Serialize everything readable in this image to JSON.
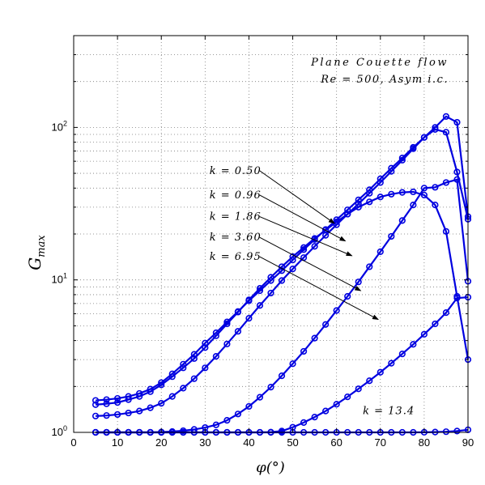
{
  "chart_data": {
    "type": "line",
    "xlabel": "φ(°)",
    "ylabel": "G",
    "ylabel_sub": "max",
    "xlim": [
      0,
      90
    ],
    "ylim": [
      1,
      400
    ],
    "yscale": "log",
    "grid": true,
    "x_ticks": [
      0,
      10,
      20,
      30,
      40,
      50,
      60,
      70,
      80,
      90
    ],
    "y_ticks": [
      {
        "value": 1,
        "base": "10",
        "exp": "0"
      },
      {
        "value": 10,
        "base": "10",
        "exp": "1"
      },
      {
        "value": 100,
        "base": "10",
        "exp": "2"
      }
    ],
    "annotation_title": [
      "Plane Couette flow",
      "Re = 500, Asym i.c."
    ],
    "series": [
      {
        "label": "k = 0.50",
        "x": [
          5,
          7.5,
          10,
          12.5,
          15,
          17.5,
          20,
          22.5,
          25,
          27.5,
          30,
          32.5,
          35,
          37.5,
          40,
          42.5,
          45,
          47.5,
          50,
          52.5,
          55,
          57.5,
          60,
          62.5,
          65,
          67.5,
          70,
          72.5,
          75,
          77.5,
          80,
          82.5,
          85,
          87.5,
          90
        ],
        "y": [
          1.52,
          1.54,
          1.57,
          1.64,
          1.72,
          1.85,
          2.05,
          2.32,
          2.65,
          3.05,
          3.6,
          4.3,
          5.15,
          6.15,
          7.4,
          8.8,
          10.4,
          12.2,
          14.2,
          16.3,
          18.7,
          21.2,
          24.0,
          27.0,
          30.0,
          32.5,
          35.0,
          36.5,
          37.5,
          37.8,
          36.0,
          31.0,
          20.8,
          7.8,
          3.0
        ],
        "arrow": {
          "label_x": 31,
          "label_y": 52,
          "tip_x": 59.5,
          "tip_y": 23.5
        }
      },
      {
        "label": "k = 0.96",
        "x": [
          5,
          7.5,
          10,
          12.5,
          15,
          17.5,
          20,
          22.5,
          25,
          27.5,
          30,
          32.5,
          35,
          37.5,
          40,
          42.5,
          45,
          47.5,
          50,
          52.5,
          55,
          57.5,
          60,
          62.5,
          65,
          67.5,
          70,
          72.5,
          75,
          77.5,
          80,
          82.5,
          85,
          87.5,
          90
        ],
        "y": [
          1.62,
          1.64,
          1.67,
          1.72,
          1.8,
          1.92,
          2.12,
          2.42,
          2.8,
          3.25,
          3.85,
          4.5,
          5.3,
          6.2,
          7.3,
          8.5,
          9.9,
          11.5,
          13.5,
          15.8,
          18.4,
          21.4,
          24.8,
          28.8,
          33.5,
          39.0,
          46.0,
          54.0,
          63.0,
          74.0,
          86.0,
          97.0,
          93.0,
          51.0,
          25.0
        ],
        "arrow": {
          "label_x": 31,
          "label_y": 36,
          "tip_x": 62,
          "tip_y": 18
        }
      },
      {
        "label": "k = 1.86",
        "x": [
          5,
          7.5,
          10,
          12.5,
          15,
          17.5,
          20,
          22.5,
          25,
          27.5,
          30,
          32.5,
          35,
          37.5,
          40,
          42.5,
          45,
          47.5,
          50,
          52.5,
          55,
          57.5,
          60,
          62.5,
          65,
          67.5,
          70,
          72.5,
          75,
          77.5,
          80,
          82.5,
          85,
          87.5,
          90
        ],
        "y": [
          1.28,
          1.29,
          1.31,
          1.34,
          1.38,
          1.45,
          1.55,
          1.72,
          1.95,
          2.25,
          2.65,
          3.15,
          3.8,
          4.6,
          5.6,
          6.8,
          8.2,
          9.9,
          11.8,
          14.0,
          16.6,
          19.6,
          23.0,
          27.0,
          31.5,
          37.0,
          43.5,
          51.5,
          61.0,
          72.5,
          86.0,
          100.0,
          118.0,
          108.0,
          26.0
        ],
        "arrow": {
          "label_x": 31,
          "label_y": 26,
          "tip_x": 63.5,
          "tip_y": 14.4
        }
      },
      {
        "label": "k = 3.60",
        "x": [
          5,
          7.5,
          10,
          12.5,
          15,
          17.5,
          20,
          22.5,
          25,
          27.5,
          30,
          32.5,
          35,
          37.5,
          40,
          42.5,
          45,
          47.5,
          50,
          52.5,
          55,
          57.5,
          60,
          62.5,
          65,
          67.5,
          70,
          72.5,
          75,
          77.5,
          80,
          82.5,
          85,
          87.5,
          90
        ],
        "y": [
          1,
          1,
          1,
          1,
          1,
          1,
          1.005,
          1.012,
          1.025,
          1.045,
          1.075,
          1.12,
          1.2,
          1.32,
          1.48,
          1.7,
          1.98,
          2.35,
          2.82,
          3.4,
          4.15,
          5.1,
          6.3,
          7.8,
          9.7,
          12.2,
          15.3,
          19.3,
          24.5,
          31.0,
          40.0,
          40.5,
          43.5,
          45.5,
          9.8
        ],
        "arrow": {
          "label_x": 31,
          "label_y": 19,
          "tip_x": 65.5,
          "tip_y": 8.5
        }
      },
      {
        "label": "k = 6.95",
        "x": [
          5,
          7.5,
          10,
          12.5,
          15,
          17.5,
          20,
          22.5,
          25,
          27.5,
          30,
          32.5,
          35,
          37.5,
          40,
          42.5,
          45,
          47.5,
          50,
          52.5,
          55,
          57.5,
          60,
          62.5,
          65,
          67.5,
          70,
          72.5,
          75,
          77.5,
          80,
          82.5,
          85,
          87.5,
          90
        ],
        "y": [
          1,
          1,
          1,
          1,
          1,
          1,
          1,
          1,
          1,
          1,
          1,
          1,
          1,
          1,
          1,
          1,
          1.003,
          1.02,
          1.08,
          1.16,
          1.26,
          1.38,
          1.53,
          1.71,
          1.93,
          2.18,
          2.48,
          2.84,
          3.27,
          3.78,
          4.4,
          5.15,
          6.1,
          7.6,
          7.7
        ],
        "arrow": {
          "label_x": 31,
          "label_y": 14.2,
          "tip_x": 69.5,
          "tip_y": 5.5
        }
      },
      {
        "label": "k = 13.4",
        "x": [
          5,
          7.5,
          10,
          12.5,
          15,
          17.5,
          20,
          22.5,
          25,
          27.5,
          30,
          32.5,
          35,
          37.5,
          40,
          42.5,
          45,
          47.5,
          50,
          52.5,
          55,
          57.5,
          60,
          62.5,
          65,
          67.5,
          70,
          72.5,
          75,
          77.5,
          80,
          82.5,
          85,
          87.5,
          90
        ],
        "y": [
          1,
          1,
          1,
          1,
          1,
          1,
          1,
          1,
          1,
          1,
          1,
          1,
          1,
          1,
          1,
          1,
          1,
          1,
          1,
          1,
          1,
          1,
          1,
          1,
          1,
          1,
          1,
          1,
          1,
          1,
          1.002,
          1.005,
          1.01,
          1.02,
          1.04
        ],
        "label_pos": {
          "x": 66,
          "y": 1.32
        }
      }
    ]
  }
}
